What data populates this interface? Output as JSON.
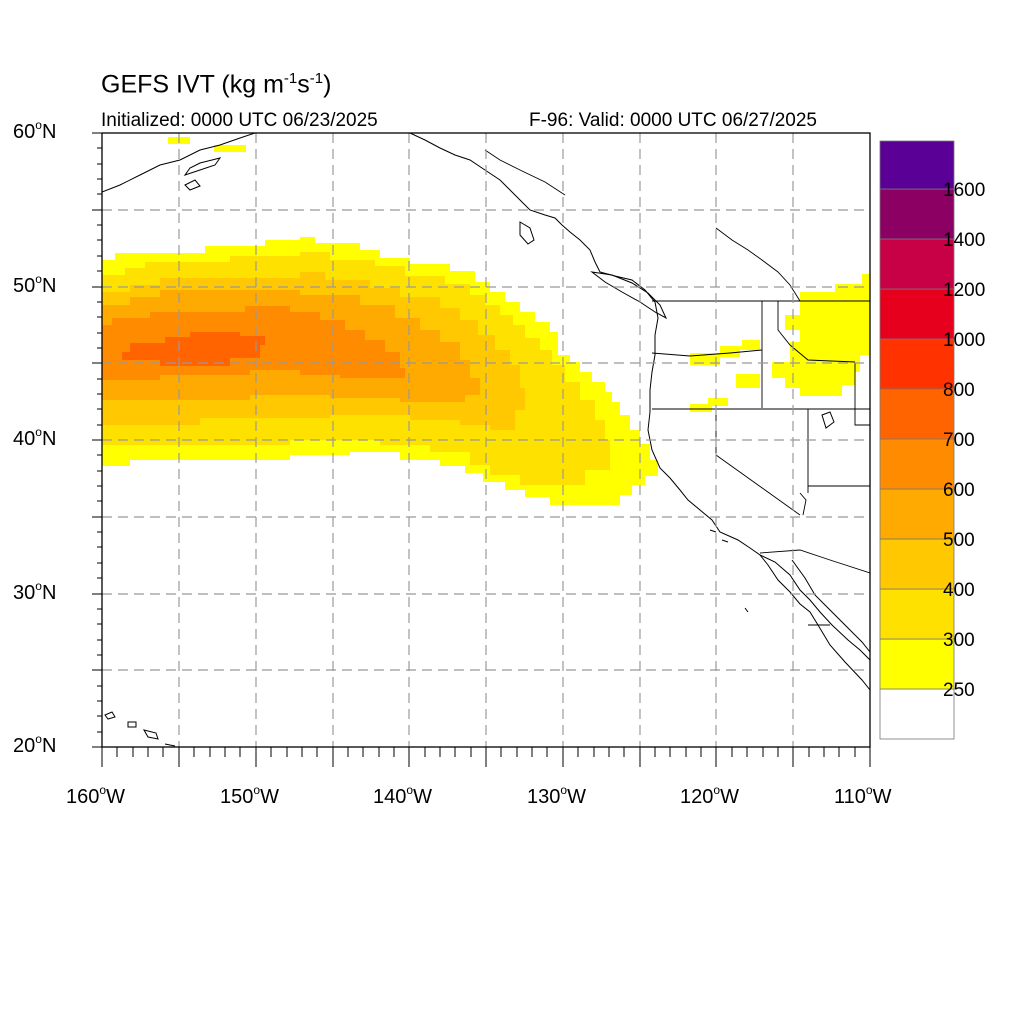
{
  "title": {
    "base": "GEFS IVT (kg m",
    "exp1": "-1",
    "mid": "s",
    "exp2": "-1",
    "close": ")"
  },
  "subtitle_left": "Initialized: 0000 UTC 06/23/2025",
  "subtitle_right": "F-96: Valid: 0000 UTC 06/27/2025",
  "map": {
    "lon_range": [
      -160,
      -110
    ],
    "lat_range": [
      20,
      60
    ],
    "grid_lon_step": 5,
    "grid_lat_step": 5,
    "grid_style": "dashed"
  },
  "lat_labels": [
    {
      "num": "60",
      "deg": "o",
      "hem": "N",
      "lat": 60
    },
    {
      "num": "50",
      "deg": "o",
      "hem": "N",
      "lat": 50
    },
    {
      "num": "40",
      "deg": "o",
      "hem": "N",
      "lat": 40
    },
    {
      "num": "30",
      "deg": "o",
      "hem": "N",
      "lat": 30
    },
    {
      "num": "20",
      "deg": "o",
      "hem": "N",
      "lat": 20
    }
  ],
  "lon_labels": [
    {
      "num": "160",
      "deg": "o",
      "hem": "W",
      "lon": -160
    },
    {
      "num": "150",
      "deg": "o",
      "hem": "W",
      "lon": -150
    },
    {
      "num": "140",
      "deg": "o",
      "hem": "W",
      "lon": -140
    },
    {
      "num": "130",
      "deg": "o",
      "hem": "W",
      "lon": -130
    },
    {
      "num": "120",
      "deg": "o",
      "hem": "W",
      "lon": -120
    },
    {
      "num": "110",
      "deg": "o",
      "hem": "W",
      "lon": -110
    }
  ],
  "colorbar": {
    "colors": [
      "#ffffff",
      "#ffff00",
      "#ffe100",
      "#ffc800",
      "#ffaa00",
      "#ff8c00",
      "#ff6400",
      "#ff3200",
      "#e6001e",
      "#c80046",
      "#8c0064",
      "#5a0096"
    ],
    "labels": [
      "250",
      "300",
      "400",
      "500",
      "600",
      "700",
      "800",
      "1000",
      "1200",
      "1400",
      "1600"
    ]
  },
  "ivt_field": {
    "units": "kg m-1 s-1",
    "region": "North Pacific atmospheric river, approx. 36-53N, 160W-124W",
    "peak_category": "600-700",
    "peak_location": {
      "lat": 46,
      "lon": -151
    },
    "inland_patches": [
      "Oregon/Idaho 250-300",
      "Montana/Wyoming 250-300"
    ]
  }
}
